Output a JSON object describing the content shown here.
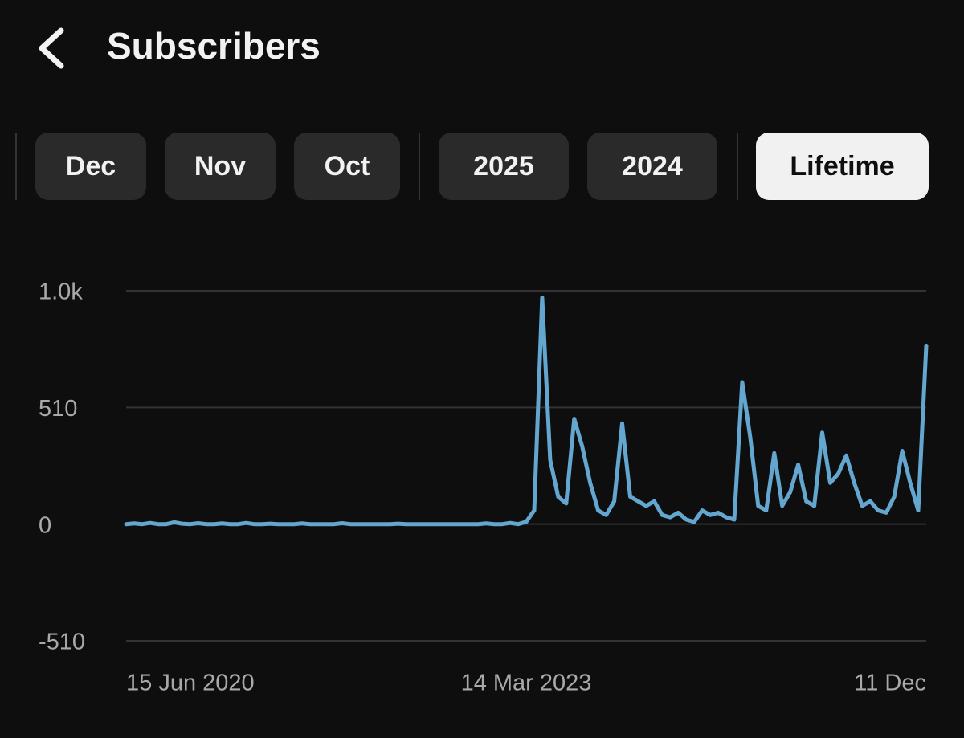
{
  "header": {
    "title": "Subscribers"
  },
  "tabs": [
    "Dec",
    "Nov",
    "Oct",
    "2025",
    "2024",
    "Lifetime"
  ],
  "active_tab": 5,
  "chart_data": {
    "type": "line",
    "color": "#63a7d0",
    "grid": true,
    "ylim": [
      -510,
      1020
    ],
    "yticks": [
      -510,
      0,
      510,
      {
        "value": 1020,
        "label": "1.0k"
      }
    ],
    "categories": [
      "15 Jun 2020",
      null,
      null,
      null,
      null,
      null,
      null,
      null,
      null,
      null,
      null,
      null,
      null,
      null,
      null,
      null,
      null,
      null,
      null,
      null,
      null,
      null,
      null,
      null,
      null,
      null,
      null,
      null,
      null,
      null,
      null,
      null,
      null,
      null,
      null,
      null,
      null,
      null,
      null,
      null,
      null,
      null,
      null,
      null,
      null,
      null,
      null,
      null,
      null,
      null,
      "14 Mar 2023",
      null,
      null,
      null,
      null,
      null,
      null,
      null,
      null,
      null,
      null,
      null,
      null,
      null,
      null,
      null,
      null,
      null,
      null,
      null,
      null,
      null,
      null,
      null,
      null,
      null,
      null,
      null,
      null,
      null,
      null,
      null,
      null,
      null,
      null,
      null,
      null,
      null,
      null,
      null,
      null,
      null,
      null,
      null,
      null,
      null,
      null,
      null,
      null,
      null,
      "11 Dec"
    ],
    "values": [
      0,
      3,
      0,
      5,
      0,
      0,
      8,
      2,
      0,
      4,
      0,
      0,
      3,
      0,
      0,
      5,
      0,
      0,
      2,
      0,
      0,
      0,
      3,
      0,
      0,
      0,
      0,
      4,
      0,
      0,
      0,
      0,
      0,
      0,
      2,
      0,
      0,
      0,
      0,
      0,
      0,
      0,
      0,
      0,
      0,
      3,
      0,
      0,
      5,
      0,
      10,
      60,
      990,
      280,
      120,
      90,
      460,
      340,
      180,
      60,
      40,
      100,
      440,
      120,
      100,
      80,
      100,
      40,
      30,
      50,
      20,
      10,
      60,
      40,
      50,
      30,
      20,
      620,
      380,
      80,
      60,
      310,
      80,
      140,
      260,
      100,
      80,
      400,
      180,
      220,
      300,
      180,
      80,
      100,
      60,
      50,
      120,
      320,
      180,
      60,
      780
    ]
  }
}
